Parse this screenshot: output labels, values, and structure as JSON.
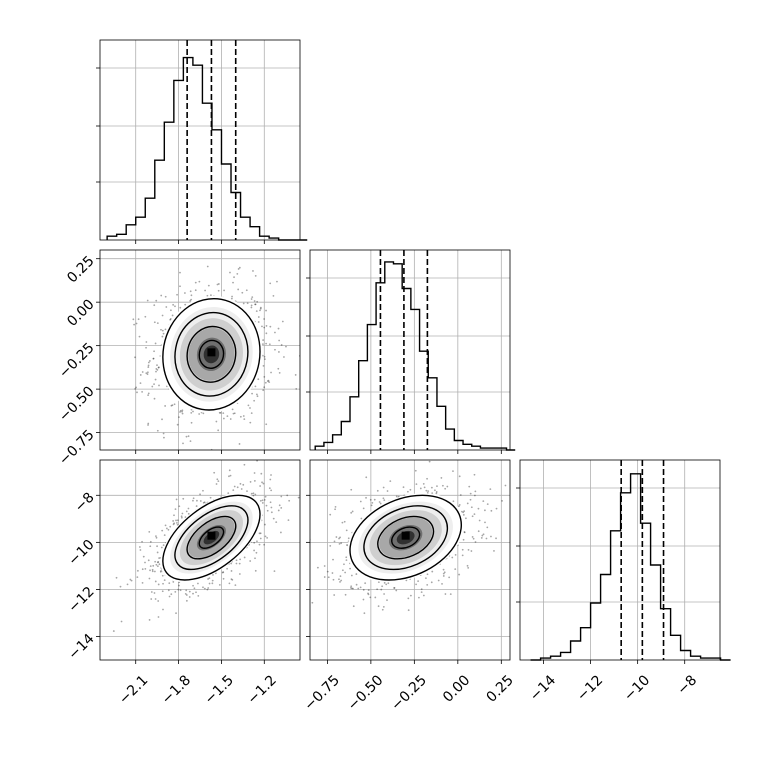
{
  "chart_data": {
    "type": "corner",
    "grid": true,
    "parameters": [
      {
        "range": [
          -2.35,
          -0.95
        ],
        "ticks": [
          -2.1,
          -1.8,
          -1.5,
          -1.2
        ],
        "tick_labels": [
          "−2.1",
          "−1.8",
          "−1.5",
          "−1.2"
        ],
        "quantiles": [
          -1.74,
          -1.57,
          -1.4
        ],
        "hist": {
          "start": -2.3,
          "width": 0.0667,
          "counts": [
            0.02,
            0.03,
            0.08,
            0.12,
            0.22,
            0.42,
            0.62,
            0.84,
            0.96,
            0.92,
            0.72,
            0.58,
            0.4,
            0.25,
            0.12,
            0.07,
            0.02,
            0.01,
            0,
            0,
            0
          ]
        }
      },
      {
        "range": [
          -0.85,
          0.3
        ],
        "ticks": [
          -0.75,
          -0.5,
          -0.25,
          0.0,
          0.25
        ],
        "tick_labels": [
          "−0.75",
          "−0.50",
          "−0.25",
          "0.00",
          "0.25"
        ],
        "quantiles": [
          -0.445,
          -0.31,
          -0.175
        ],
        "hist": {
          "start": -0.82,
          "width": 0.05,
          "counts": [
            0.02,
            0.04,
            0.08,
            0.15,
            0.28,
            0.47,
            0.66,
            0.88,
            0.99,
            0.98,
            0.85,
            0.74,
            0.52,
            0.38,
            0.23,
            0.11,
            0.05,
            0.03,
            0.02,
            0.01,
            0.01,
            0.01,
            0
          ]
        }
      },
      {
        "range": [
          -15.0,
          -6.5
        ],
        "ticks": [
          -14,
          -12,
          -10,
          -8
        ],
        "tick_labels": [
          "−14",
          "−12",
          "−10",
          "−8"
        ],
        "quantiles": [
          -10.7,
          -9.8,
          -8.9
        ],
        "hist": {
          "start": -14.55,
          "width": 0.425,
          "counts": [
            0,
            0.01,
            0.02,
            0.04,
            0.1,
            0.17,
            0.3,
            0.45,
            0.68,
            0.88,
            0.98,
            0.72,
            0.5,
            0.27,
            0.13,
            0.05,
            0.02,
            0.01,
            0.01,
            0
          ]
        }
      }
    ],
    "pairs": [
      {
        "x_param": 0,
        "y_param": 1,
        "center": [
          -1.57,
          -0.3
        ],
        "std": [
          0.17,
          0.16
        ],
        "corr": 0.05
      },
      {
        "x_param": 0,
        "y_param": 2,
        "center": [
          -1.57,
          -9.8
        ],
        "std": [
          0.17,
          0.9
        ],
        "corr": 0.55
      },
      {
        "x_param": 1,
        "y_param": 2,
        "center": [
          -0.3,
          -9.8
        ],
        "std": [
          0.16,
          0.9
        ],
        "corr": 0.3
      }
    ],
    "contour_levels_sigma": [
      0.5,
      1.0,
      1.5,
      2.0
    ]
  }
}
